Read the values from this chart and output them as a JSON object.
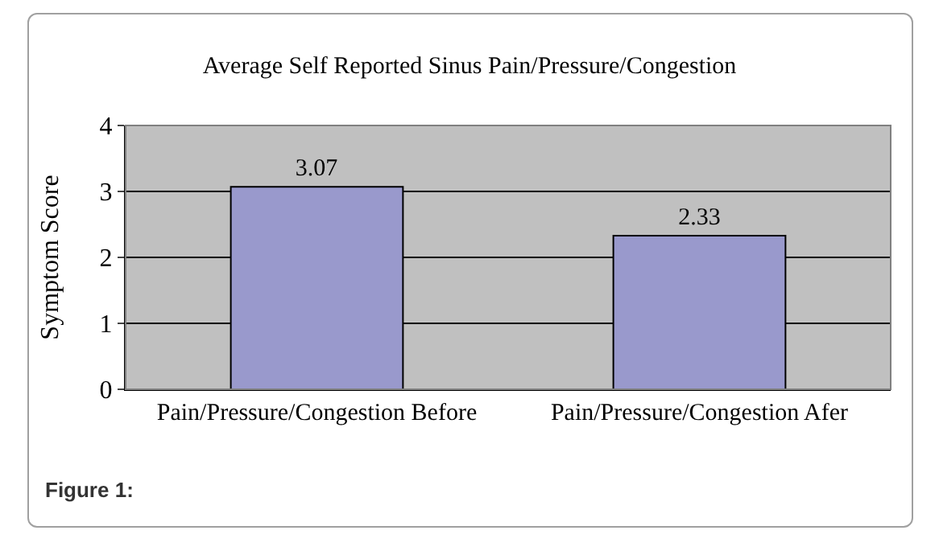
{
  "chart_data": {
    "type": "bar",
    "title": "Average Self Reported Sinus Pain/Pressure/Congestion",
    "ylabel": "Symptom Score",
    "categories": [
      "Pain/Pressure/Congestion Before",
      "Pain/Pressure/Congestion Afer"
    ],
    "values": [
      3.07,
      2.33
    ],
    "color": "#9999cc",
    "ylim": [
      0,
      4
    ],
    "yticks": [
      0,
      1,
      2,
      3,
      4
    ],
    "grid": "y",
    "data_labels": true,
    "annotations": [
      "Figure 1:"
    ]
  }
}
